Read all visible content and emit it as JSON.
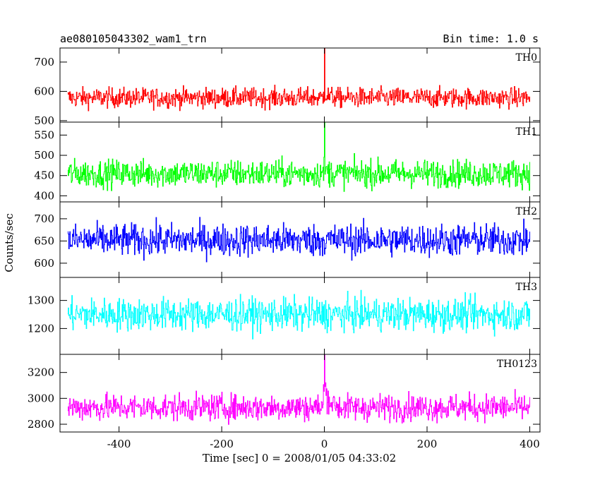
{
  "chart_data": {
    "type": "line",
    "title": "ae080105043302_wam1_trn",
    "bin_time_label": "Bin time: 1.0 s",
    "xlabel": "Time [sec] 0 = 2008/01/05 04:33:02",
    "ylabel": "Counts/sec",
    "xlim": [
      -515,
      420
    ],
    "data_x_range": [
      -500,
      400
    ],
    "xticks": [
      -400,
      -200,
      0,
      200,
      400
    ],
    "grid": false,
    "panels": [
      {
        "name": "TH0",
        "color": "#ff0000",
        "ylim": [
          495,
          748
        ],
        "yticks": [
          500,
          600,
          700
        ],
        "mean": 578,
        "noise_amplitude": 28,
        "spike": {
          "x": 0,
          "y": 748
        },
        "transient_bump": {
          "x": 0,
          "height": 12
        }
      },
      {
        "name": "TH1",
        "color": "#00ff00",
        "ylim": [
          385,
          582
        ],
        "yticks": [
          400,
          450,
          500,
          550
        ],
        "mean": 455,
        "noise_amplitude": 28,
        "spike": {
          "x": 0,
          "y": 582
        },
        "transient_bump": {
          "x": 0,
          "height": 8
        }
      },
      {
        "name": "TH2",
        "color": "#0000ff",
        "ylim": [
          568,
          738
        ],
        "yticks": [
          600,
          650,
          700
        ],
        "mean": 652,
        "noise_amplitude": 30,
        "spike": null,
        "transient_bump": null
      },
      {
        "name": "TH3",
        "color": "#00ffff",
        "ylim": [
          1108,
          1382
        ],
        "yticks": [
          1200,
          1300
        ],
        "mean": 1250,
        "noise_amplitude": 48,
        "spike": null,
        "transient_bump": null
      },
      {
        "name": "TH0123",
        "color": "#ff00ff",
        "ylim": [
          2740,
          3340
        ],
        "yticks": [
          2800,
          3000,
          3200
        ],
        "mean": 2930,
        "noise_amplitude": 85,
        "spike": {
          "x": 0,
          "y": 3340
        },
        "transient_bump": {
          "x": 0,
          "height": 150
        }
      }
    ]
  }
}
